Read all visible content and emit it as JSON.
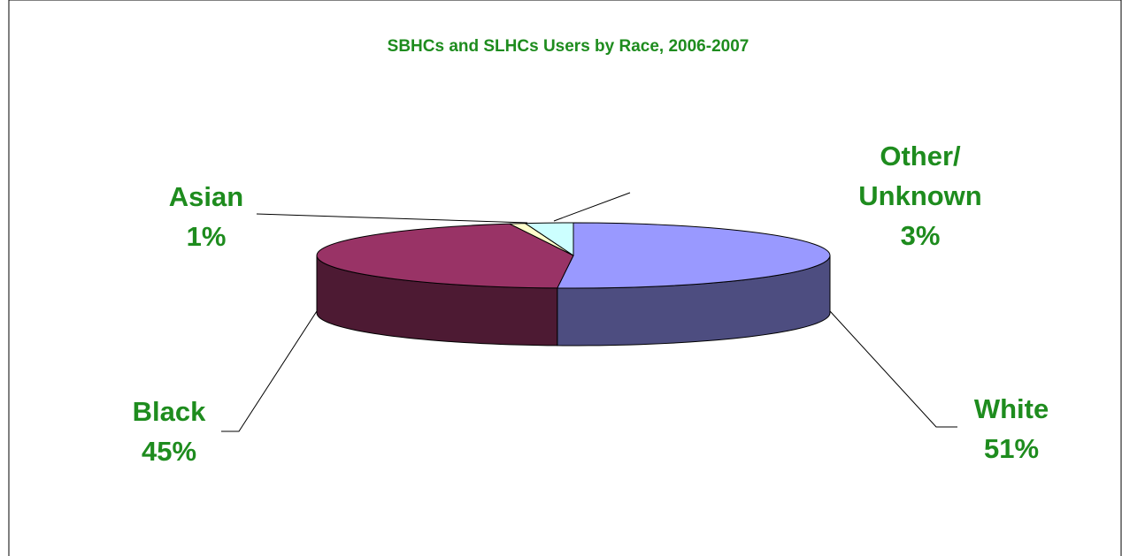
{
  "chart_data": {
    "type": "pie3d",
    "title": "SBHCs and SLHCs Users by Race, 2006-2007",
    "categories": [
      "White",
      "Black",
      "Asian",
      "Other/ Unknown"
    ],
    "values": [
      51,
      45,
      1,
      3
    ],
    "value_labels": [
      "51%",
      "45%",
      "1%",
      "3%"
    ],
    "colors": [
      "#9999ff",
      "#993366",
      "#ffffcc",
      "#ccffff"
    ]
  }
}
